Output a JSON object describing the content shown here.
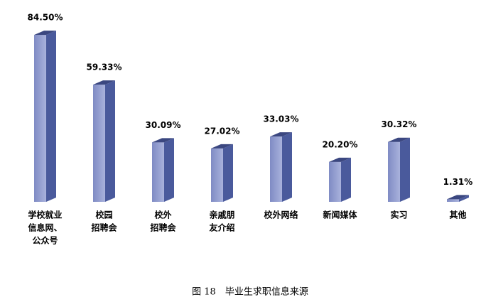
{
  "chart_data": {
    "type": "bar3d",
    "caption": "图 18　毕业生求职信息来源",
    "categories": [
      [
        "学校就业",
        "信息网、",
        "公众号"
      ],
      [
        "校园",
        "招聘会"
      ],
      [
        "校外",
        "招聘会"
      ],
      [
        "亲戚朋",
        "友介绍"
      ],
      [
        "校外网络"
      ],
      [
        "新闻媒体"
      ],
      [
        "实习"
      ],
      [
        "其他"
      ]
    ],
    "values": [
      84.5,
      59.33,
      30.09,
      27.02,
      33.03,
      20.2,
      30.32,
      1.31
    ],
    "value_labels": [
      "84.50%",
      "59.33%",
      "30.09%",
      "27.02%",
      "33.03%",
      "20.20%",
      "30.32%",
      "1.31%"
    ],
    "color": "#4a5a9c"
  }
}
